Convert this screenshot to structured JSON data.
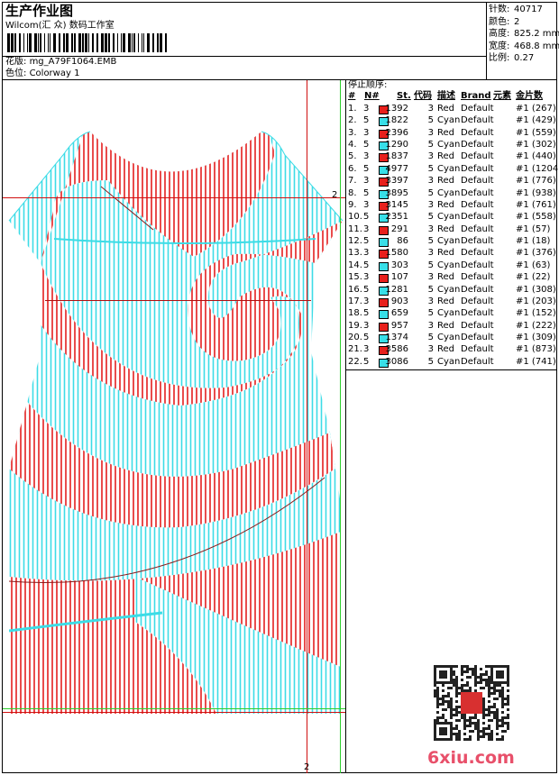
{
  "header": {
    "title": "生产作业图",
    "subtitle": "Wilcom(汇 众) 数码工作室",
    "design_label": "花版:",
    "design_value": "mg_A79F1064.EMB",
    "colorway_label": "色位:",
    "colorway_value": "Colorway 1"
  },
  "info": [
    {
      "label": "针数:",
      "value": "40717"
    },
    {
      "label": "颜色:",
      "value": "2"
    },
    {
      "label": "高度:",
      "value": "825.2 mm"
    },
    {
      "label": "宽度:",
      "value": "468.8 mm"
    },
    {
      "label": "比例:",
      "value": "0.27"
    }
  ],
  "table": {
    "title": "停止顺序:",
    "columns": [
      "#",
      "N#",
      "St.",
      "代码",
      "描述",
      "Brand",
      "元素",
      "金片数"
    ],
    "rows": [
      {
        "no": "1.",
        "needle": "3",
        "swatch": "#e8201c",
        "stitches": "1392",
        "code": "3",
        "desc": "Red",
        "brand": "Default",
        "element": "#1 (267)"
      },
      {
        "no": "2.",
        "needle": "5",
        "swatch": "#38dfe8",
        "stitches": "1822",
        "code": "5",
        "desc": "Cyan",
        "brand": "Default",
        "element": "#1 (429)"
      },
      {
        "no": "3.",
        "needle": "3",
        "swatch": "#e8201c",
        "stitches": "2396",
        "code": "3",
        "desc": "Red",
        "brand": "Default",
        "element": "#1 (559)"
      },
      {
        "no": "4.",
        "needle": "5",
        "swatch": "#38dfe8",
        "stitches": "1290",
        "code": "5",
        "desc": "Cyan",
        "brand": "Default",
        "element": "#1 (302)"
      },
      {
        "no": "5.",
        "needle": "3",
        "swatch": "#e8201c",
        "stitches": "1837",
        "code": "3",
        "desc": "Red",
        "brand": "Default",
        "element": "#1 (440)"
      },
      {
        "no": "6.",
        "needle": "5",
        "swatch": "#38dfe8",
        "stitches": "4977",
        "code": "5",
        "desc": "Cyan",
        "brand": "Default",
        "element": "#1 (1204)"
      },
      {
        "no": "7.",
        "needle": "3",
        "swatch": "#e8201c",
        "stitches": "3397",
        "code": "3",
        "desc": "Red",
        "brand": "Default",
        "element": "#1 (776)"
      },
      {
        "no": "8.",
        "needle": "5",
        "swatch": "#38dfe8",
        "stitches": "3895",
        "code": "5",
        "desc": "Cyan",
        "brand": "Default",
        "element": "#1 (938)"
      },
      {
        "no": "9.",
        "needle": "3",
        "swatch": "#e8201c",
        "stitches": "3145",
        "code": "3",
        "desc": "Red",
        "brand": "Default",
        "element": "#1 (761)"
      },
      {
        "no": "10.",
        "needle": "5",
        "swatch": "#38dfe8",
        "stitches": "2351",
        "code": "5",
        "desc": "Cyan",
        "brand": "Default",
        "element": "#1 (558)"
      },
      {
        "no": "11.",
        "needle": "3",
        "swatch": "#e8201c",
        "stitches": "291",
        "code": "3",
        "desc": "Red",
        "brand": "Default",
        "element": "#1 (57)"
      },
      {
        "no": "12.",
        "needle": "5",
        "swatch": "#38dfe8",
        "stitches": "86",
        "code": "5",
        "desc": "Cyan",
        "brand": "Default",
        "element": "#1 (18)"
      },
      {
        "no": "13.",
        "needle": "3",
        "swatch": "#e8201c",
        "stitches": "1580",
        "code": "3",
        "desc": "Red",
        "brand": "Default",
        "element": "#1 (376)"
      },
      {
        "no": "14.",
        "needle": "5",
        "swatch": "#38dfe8",
        "stitches": "303",
        "code": "5",
        "desc": "Cyan",
        "brand": "Default",
        "element": "#1 (63)"
      },
      {
        "no": "15.",
        "needle": "3",
        "swatch": "#e8201c",
        "stitches": "107",
        "code": "3",
        "desc": "Red",
        "brand": "Default",
        "element": "#1 (22)"
      },
      {
        "no": "16.",
        "needle": "5",
        "swatch": "#38dfe8",
        "stitches": "1281",
        "code": "5",
        "desc": "Cyan",
        "brand": "Default",
        "element": "#1 (308)"
      },
      {
        "no": "17.",
        "needle": "3",
        "swatch": "#e8201c",
        "stitches": "903",
        "code": "3",
        "desc": "Red",
        "brand": "Default",
        "element": "#1 (203)"
      },
      {
        "no": "18.",
        "needle": "5",
        "swatch": "#38dfe8",
        "stitches": "659",
        "code": "5",
        "desc": "Cyan",
        "brand": "Default",
        "element": "#1 (152)"
      },
      {
        "no": "19.",
        "needle": "3",
        "swatch": "#e8201c",
        "stitches": "957",
        "code": "3",
        "desc": "Red",
        "brand": "Default",
        "element": "#1 (222)"
      },
      {
        "no": "20.",
        "needle": "5",
        "swatch": "#38dfe8",
        "stitches": "1374",
        "code": "5",
        "desc": "Cyan",
        "brand": "Default",
        "element": "#1 (309)"
      },
      {
        "no": "21.",
        "needle": "3",
        "swatch": "#e8201c",
        "stitches": "3586",
        "code": "3",
        "desc": "Red",
        "brand": "Default",
        "element": "#1 (873)"
      },
      {
        "no": "22.",
        "needle": "5",
        "swatch": "#38dfe8",
        "stitches": "3086",
        "code": "5",
        "desc": "Cyan",
        "brand": "Default",
        "element": "#1 (741)"
      }
    ]
  },
  "design": {
    "guide_labels": [
      "2",
      "2"
    ],
    "watermark": "6xiu.com"
  }
}
